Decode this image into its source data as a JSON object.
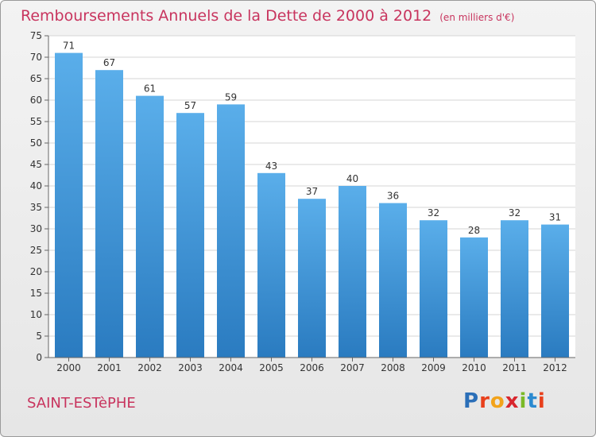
{
  "header": {
    "title": "Remboursements Annuels de la Dette de 2000 à 2012",
    "subtitle": "(en milliers d'€)"
  },
  "commune": "SAINT-ESTèPHE",
  "logo": {
    "letters": [
      "P",
      "r",
      "o",
      "x",
      "i",
      "t",
      "i"
    ],
    "colors": [
      "#2b6fb8",
      "#e8401c",
      "#f2a31b",
      "#d8262e",
      "#7ab927",
      "#2b8ad0",
      "#e8401c"
    ]
  },
  "chart_data": {
    "type": "bar",
    "categories": [
      "2000",
      "2001",
      "2002",
      "2003",
      "2004",
      "2005",
      "2006",
      "2007",
      "2008",
      "2009",
      "2010",
      "2011",
      "2012"
    ],
    "values": [
      71,
      67,
      61,
      57,
      59,
      43,
      37,
      40,
      36,
      32,
      28,
      32,
      31
    ],
    "ylim": [
      0,
      75
    ],
    "yticks": [
      0,
      5,
      10,
      15,
      20,
      25,
      30,
      35,
      40,
      45,
      50,
      55,
      60,
      65,
      70,
      75
    ],
    "grid": true,
    "bar_color_top": "#5aaeea",
    "bar_color_bottom": "#2a7bc0"
  }
}
